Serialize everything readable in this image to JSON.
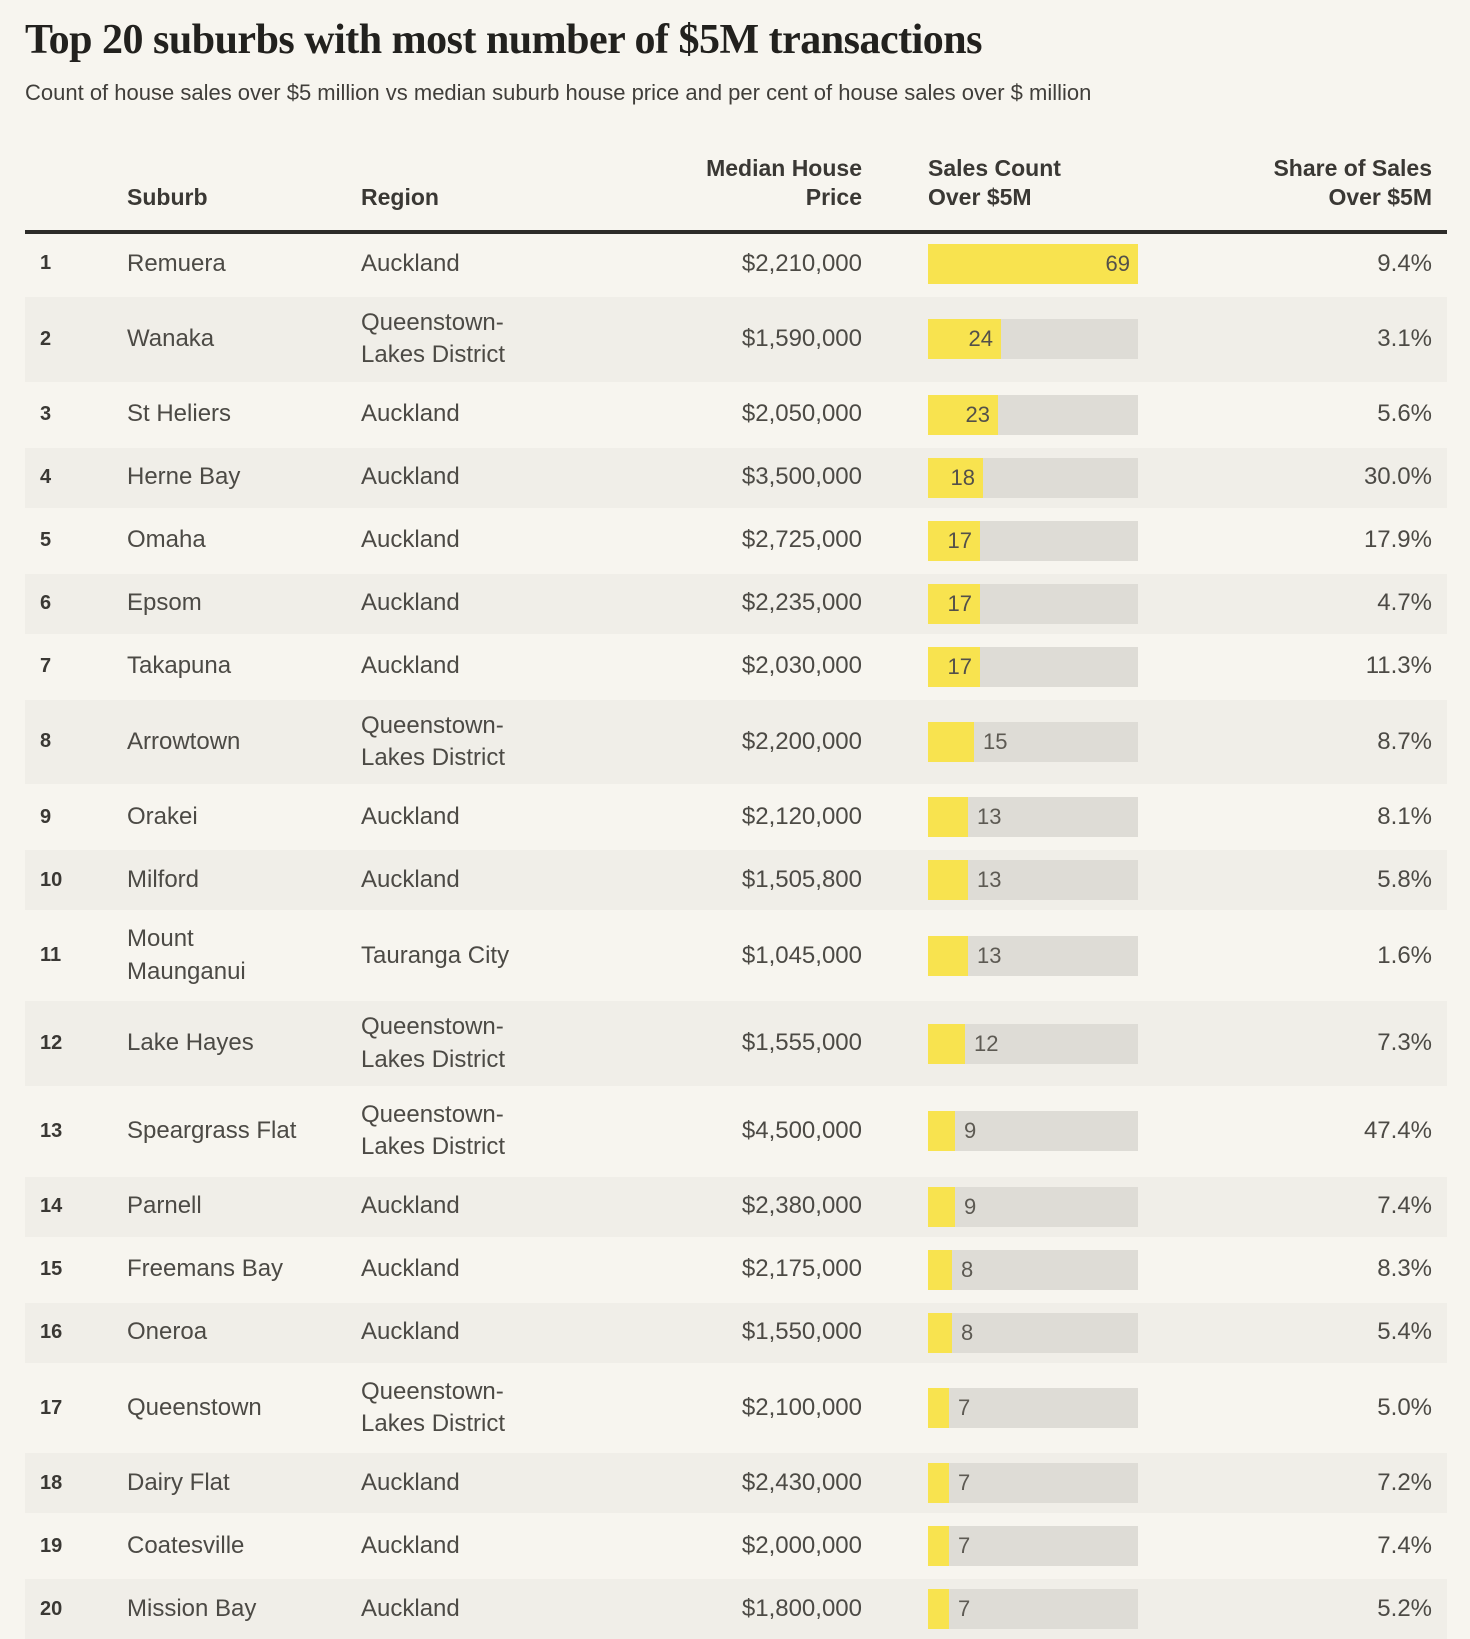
{
  "header": {
    "title": "Top 20 suburbs with most number of $5M transactions",
    "subtitle": "Count of house sales over $5 million vs median suburb house price and per cent of house sales over $ million"
  },
  "colors": {
    "bar_fill": "#f8e34f",
    "bar_track": "#dedcd6",
    "row_stripe": "#f0eee8",
    "background": "#f7f5ef"
  },
  "chart_data": {
    "type": "table",
    "title": "Top 20 suburbs with most number of $5M transactions",
    "subtitle": "Count of house sales over $5 million vs median suburb house price and per cent of house sales over $ million",
    "columns": [
      "",
      "Suburb",
      "Region",
      "Median House Price",
      "Sales Count Over $5M",
      "Share of Sales Over $5M"
    ],
    "bar_column": {
      "applies_to": "Sales Count Over $5M",
      "max_value": 69,
      "color": "#f8e34f"
    },
    "rows": [
      {
        "rank": "1",
        "suburb": "Remuera",
        "region": "Auckland",
        "median_price": "$2,210,000",
        "sales_count": 69,
        "share": "9.4%"
      },
      {
        "rank": "2",
        "suburb": "Wanaka",
        "region": "Queenstown-Lakes District",
        "median_price": "$1,590,000",
        "sales_count": 24,
        "share": "3.1%"
      },
      {
        "rank": "3",
        "suburb": "St Heliers",
        "region": "Auckland",
        "median_price": "$2,050,000",
        "sales_count": 23,
        "share": "5.6%"
      },
      {
        "rank": "4",
        "suburb": "Herne Bay",
        "region": "Auckland",
        "median_price": "$3,500,000",
        "sales_count": 18,
        "share": "30.0%"
      },
      {
        "rank": "5",
        "suburb": "Omaha",
        "region": "Auckland",
        "median_price": "$2,725,000",
        "sales_count": 17,
        "share": "17.9%"
      },
      {
        "rank": "6",
        "suburb": "Epsom",
        "region": "Auckland",
        "median_price": "$2,235,000",
        "sales_count": 17,
        "share": "4.7%"
      },
      {
        "rank": "7",
        "suburb": "Takapuna",
        "region": "Auckland",
        "median_price": "$2,030,000",
        "sales_count": 17,
        "share": "11.3%"
      },
      {
        "rank": "8",
        "suburb": "Arrowtown",
        "region": "Queenstown-Lakes District",
        "median_price": "$2,200,000",
        "sales_count": 15,
        "share": "8.7%"
      },
      {
        "rank": "9",
        "suburb": "Orakei",
        "region": "Auckland",
        "median_price": "$2,120,000",
        "sales_count": 13,
        "share": "8.1%"
      },
      {
        "rank": "10",
        "suburb": "Milford",
        "region": "Auckland",
        "median_price": "$1,505,800",
        "sales_count": 13,
        "share": "5.8%"
      },
      {
        "rank": "11",
        "suburb": "Mount Maunganui",
        "region": "Tauranga City",
        "median_price": "$1,045,000",
        "sales_count": 13,
        "share": "1.6%"
      },
      {
        "rank": "12",
        "suburb": "Lake Hayes",
        "region": "Queenstown-Lakes District",
        "median_price": "$1,555,000",
        "sales_count": 12,
        "share": "7.3%"
      },
      {
        "rank": "13",
        "suburb": "Speargrass Flat",
        "region": "Queenstown-Lakes District",
        "median_price": "$4,500,000",
        "sales_count": 9,
        "share": "47.4%"
      },
      {
        "rank": "14",
        "suburb": "Parnell",
        "region": "Auckland",
        "median_price": "$2,380,000",
        "sales_count": 9,
        "share": "7.4%"
      },
      {
        "rank": "15",
        "suburb": "Freemans Bay",
        "region": "Auckland",
        "median_price": "$2,175,000",
        "sales_count": 8,
        "share": "8.3%"
      },
      {
        "rank": "16",
        "suburb": "Oneroa",
        "region": "Auckland",
        "median_price": "$1,550,000",
        "sales_count": 8,
        "share": "5.4%"
      },
      {
        "rank": "17",
        "suburb": "Queenstown",
        "region": "Queenstown-Lakes District",
        "median_price": "$2,100,000",
        "sales_count": 7,
        "share": "5.0%"
      },
      {
        "rank": "18",
        "suburb": "Dairy Flat",
        "region": "Auckland",
        "median_price": "$2,430,000",
        "sales_count": 7,
        "share": "7.2%"
      },
      {
        "rank": "19",
        "suburb": "Coatesville",
        "region": "Auckland",
        "median_price": "$2,000,000",
        "sales_count": 7,
        "share": "7.4%"
      },
      {
        "rank": "20",
        "suburb": "Mission Bay",
        "region": "Auckland",
        "median_price": "$1,800,000",
        "sales_count": 7,
        "share": "5.2%"
      }
    ]
  }
}
